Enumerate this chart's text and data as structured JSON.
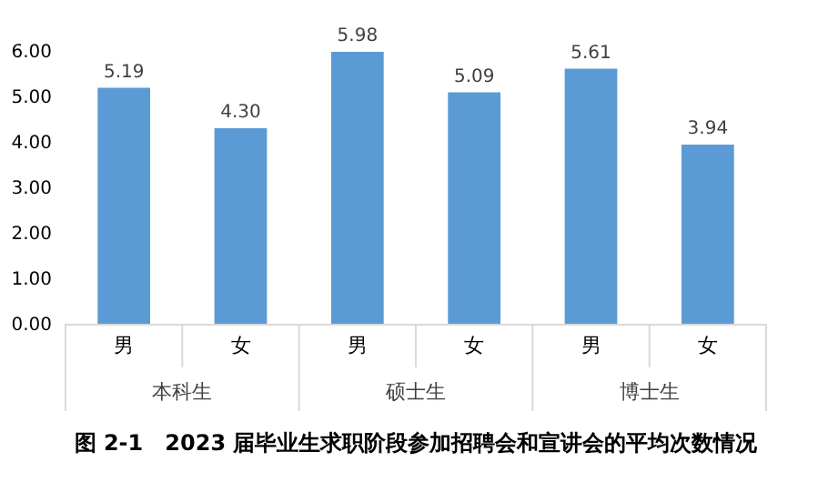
{
  "chart_data": {
    "type": "bar",
    "title": "图 2-1　2023 届毕业生求职阶段参加招聘会和宣讲会的平均次数情况",
    "categories": [
      "男",
      "女",
      "男",
      "女",
      "男",
      "女"
    ],
    "values": [
      5.19,
      4.3,
      5.98,
      5.09,
      5.61,
      3.94
    ],
    "value_labels": [
      "5.19",
      "4.30",
      "5.98",
      "5.09",
      "5.61",
      "3.94"
    ],
    "color": "#5b9bd5",
    "annotations": [
      "本科生",
      "硕士生",
      "博士生"
    ],
    "ylim": [
      0,
      6
    ],
    "yticks": [
      {
        "value": 0,
        "label": "0.00"
      },
      {
        "value": 1,
        "label": "1.00"
      },
      {
        "value": 2,
        "label": "2.00"
      },
      {
        "value": 3,
        "label": "3.00"
      },
      {
        "value": 4,
        "label": "4.00"
      },
      {
        "value": 5,
        "label": "5.00"
      },
      {
        "value": 6,
        "label": "6.00"
      }
    ],
    "grid": false
  }
}
